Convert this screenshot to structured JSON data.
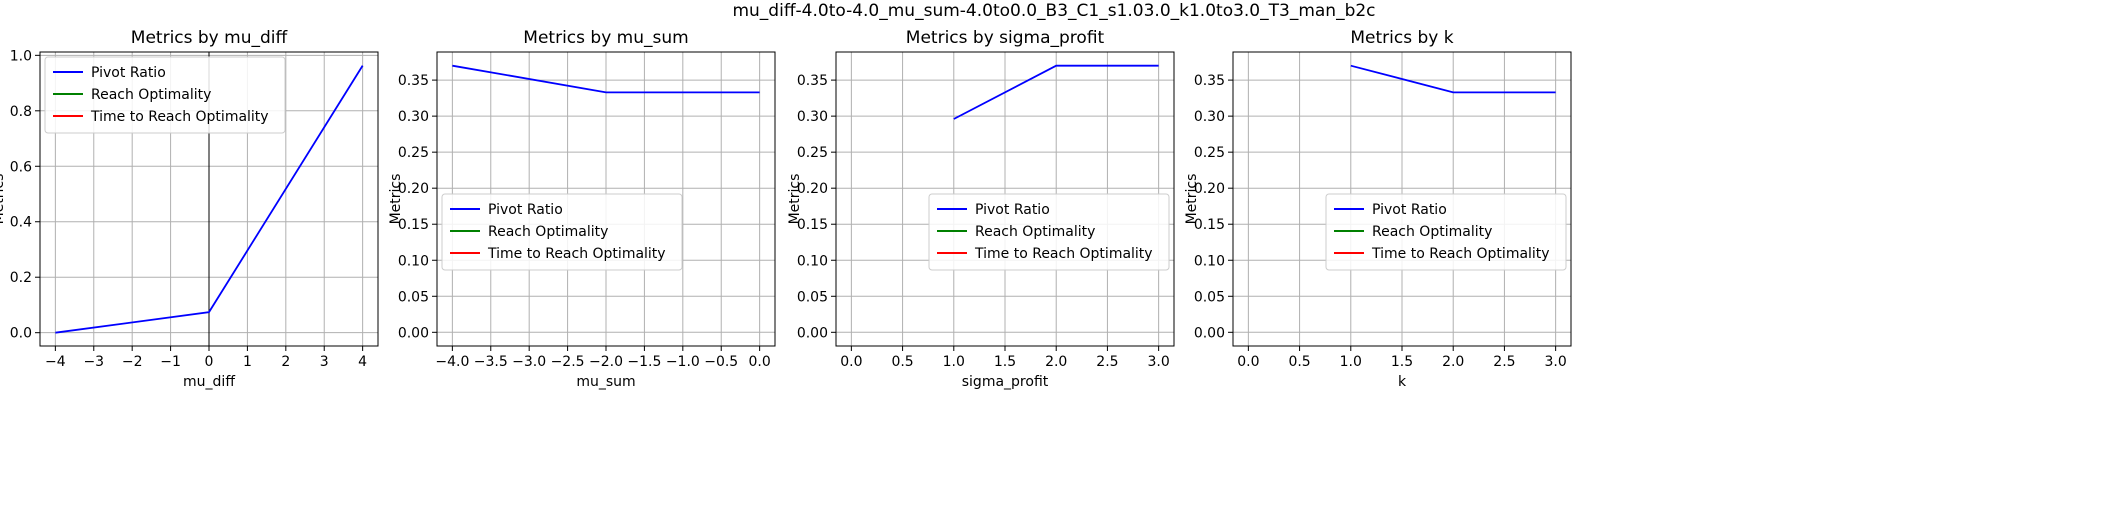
{
  "figure": {
    "title": "mu_diff-4.0to-4.0_mu_sum-4.0to0.0_B3_C1_s1.03.0_k1.0to3.0_T3_man_b2c"
  },
  "chart_data": [
    {
      "type": "line",
      "title": "Metrics by mu_diff",
      "xlabel": "mu_diff",
      "ylabel": "Metrics",
      "xlim": [
        -4.4,
        4.4
      ],
      "ylim": [
        -0.048,
        1.012
      ],
      "xticks": [
        -4,
        -3,
        -2,
        -1,
        0,
        1,
        2,
        3,
        4
      ],
      "xtick_labels": [
        "−4",
        "−3",
        "−2",
        "−1",
        "0",
        "1",
        "2",
        "3",
        "4"
      ],
      "yticks": [
        0.0,
        0.2,
        0.4,
        0.6,
        0.8,
        1.0
      ],
      "ytick_labels": [
        "0.0",
        "0.2",
        "0.4",
        "0.6",
        "0.8",
        "1.0"
      ],
      "grid": true,
      "vertical_line_at_x": 0,
      "legend": {
        "placement": "upper-left",
        "entries": [
          "Pivot Ratio",
          "Reach Optimality",
          "Time to Reach Optimality"
        ]
      },
      "series": [
        {
          "name": "Pivot Ratio",
          "color": "#0000ff",
          "x": [
            -4,
            0,
            4
          ],
          "y": [
            0.0,
            0.074,
            0.963
          ]
        },
        {
          "name": "Reach Optimality",
          "color": "#008000",
          "x": [],
          "y": []
        },
        {
          "name": "Time to Reach Optimality",
          "color": "#ff0000",
          "x": [],
          "y": []
        }
      ]
    },
    {
      "type": "line",
      "title": "Metrics by mu_sum",
      "xlabel": "mu_sum",
      "ylabel": "Metrics",
      "xlim": [
        -4.2,
        0.2
      ],
      "ylim": [
        -0.019,
        0.389
      ],
      "xticks": [
        -4.0,
        -3.5,
        -3.0,
        -2.5,
        -2.0,
        -1.5,
        -1.0,
        -0.5,
        0.0
      ],
      "xtick_labels": [
        "−4.0",
        "−3.5",
        "−3.0",
        "−2.5",
        "−2.0",
        "−1.5",
        "−1.0",
        "−0.5",
        "0.0"
      ],
      "yticks": [
        0.0,
        0.05,
        0.1,
        0.15,
        0.2,
        0.25,
        0.3,
        0.35
      ],
      "ytick_labels": [
        "0.00",
        "0.05",
        "0.10",
        "0.15",
        "0.20",
        "0.25",
        "0.30",
        "0.35"
      ],
      "grid": true,
      "legend": {
        "placement": "center-left",
        "entries": [
          "Pivot Ratio",
          "Reach Optimality",
          "Time to Reach Optimality"
        ]
      },
      "series": [
        {
          "name": "Pivot Ratio",
          "color": "#0000ff",
          "x": [
            -4.0,
            -2.0,
            0.0
          ],
          "y": [
            0.37,
            0.333,
            0.333
          ]
        },
        {
          "name": "Reach Optimality",
          "color": "#008000",
          "x": [],
          "y": []
        },
        {
          "name": "Time to Reach Optimality",
          "color": "#ff0000",
          "x": [],
          "y": []
        }
      ]
    },
    {
      "type": "line",
      "title": "Metrics by sigma_profit",
      "xlabel": "sigma_profit",
      "ylabel": "Metrics",
      "xlim": [
        -0.15,
        3.15
      ],
      "ylim": [
        -0.019,
        0.389
      ],
      "xticks": [
        0.0,
        0.5,
        1.0,
        1.5,
        2.0,
        2.5,
        3.0
      ],
      "xtick_labels": [
        "0.0",
        "0.5",
        "1.0",
        "1.5",
        "2.0",
        "2.5",
        "3.0"
      ],
      "yticks": [
        0.0,
        0.05,
        0.1,
        0.15,
        0.2,
        0.25,
        0.3,
        0.35
      ],
      "ytick_labels": [
        "0.00",
        "0.05",
        "0.10",
        "0.15",
        "0.20",
        "0.25",
        "0.30",
        "0.35"
      ],
      "grid": true,
      "legend": {
        "placement": "center-right",
        "entries": [
          "Pivot Ratio",
          "Reach Optimality",
          "Time to Reach Optimality"
        ]
      },
      "series": [
        {
          "name": "Pivot Ratio",
          "color": "#0000ff",
          "x": [
            1.0,
            2.0,
            3.0
          ],
          "y": [
            0.296,
            0.37,
            0.37
          ]
        },
        {
          "name": "Reach Optimality",
          "color": "#008000",
          "x": [],
          "y": []
        },
        {
          "name": "Time to Reach Optimality",
          "color": "#ff0000",
          "x": [],
          "y": []
        }
      ]
    },
    {
      "type": "line",
      "title": "Metrics by k",
      "xlabel": "k",
      "ylabel": "Metrics",
      "xlim": [
        -0.15,
        3.15
      ],
      "ylim": [
        -0.019,
        0.389
      ],
      "xticks": [
        0.0,
        0.5,
        1.0,
        1.5,
        2.0,
        2.5,
        3.0
      ],
      "xtick_labels": [
        "0.0",
        "0.5",
        "1.0",
        "1.5",
        "2.0",
        "2.5",
        "3.0"
      ],
      "yticks": [
        0.0,
        0.05,
        0.1,
        0.15,
        0.2,
        0.25,
        0.3,
        0.35
      ],
      "ytick_labels": [
        "0.00",
        "0.05",
        "0.10",
        "0.15",
        "0.20",
        "0.25",
        "0.30",
        "0.35"
      ],
      "grid": true,
      "legend": {
        "placement": "center-right",
        "entries": [
          "Pivot Ratio",
          "Reach Optimality",
          "Time to Reach Optimality"
        ]
      },
      "series": [
        {
          "name": "Pivot Ratio",
          "color": "#0000ff",
          "x": [
            1.0,
            2.0,
            3.0
          ],
          "y": [
            0.37,
            0.333,
            0.333
          ]
        },
        {
          "name": "Reach Optimality",
          "color": "#008000",
          "x": [],
          "y": []
        },
        {
          "name": "Time to Reach Optimality",
          "color": "#ff0000",
          "x": [],
          "y": []
        }
      ]
    }
  ]
}
